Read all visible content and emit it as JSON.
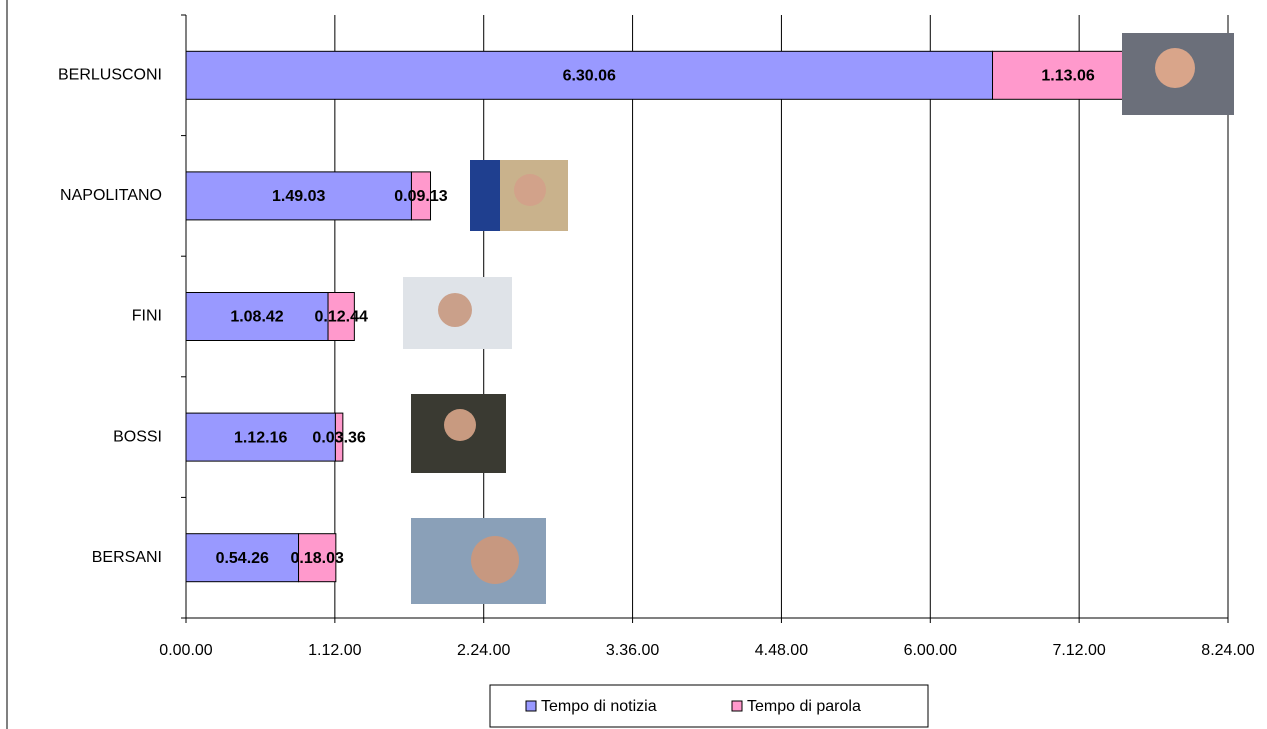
{
  "chart_data": {
    "type": "stacked-barh",
    "categories": [
      "BERLUSCONI",
      "NAPOLITANO",
      "FINI",
      "BOSSI",
      "BERSANI"
    ],
    "series": [
      {
        "name": "Tempo di notizia",
        "color": "#9999ff",
        "values": [
          23406,
          6543,
          4122,
          4336,
          3266
        ],
        "value_labels": [
          "6.30.06",
          "1.49.03",
          "1.08.42",
          "1.12.16",
          "0.54.26"
        ]
      },
      {
        "name": "Tempo di parola",
        "color": "#ff99cc",
        "values": [
          4386,
          553,
          764,
          216,
          1083
        ],
        "value_labels": [
          "1.13.06",
          "0.09.13",
          "0.12.44",
          "0.03.36",
          "0.18.03"
        ]
      }
    ],
    "xlim": [
      0,
      30240
    ],
    "xticks": [
      {
        "value": 0,
        "label": "0.00.00"
      },
      {
        "value": 4320,
        "label": "1.12.00"
      },
      {
        "value": 8640,
        "label": "2.24.00"
      },
      {
        "value": 12960,
        "label": "3.36.00"
      },
      {
        "value": 17280,
        "label": "4.48.00"
      },
      {
        "value": 21600,
        "label": "6.00.00"
      },
      {
        "value": 25920,
        "label": "7.12.00"
      },
      {
        "value": 30240,
        "label": "8.24.00"
      }
    ],
    "grid": true
  }
}
